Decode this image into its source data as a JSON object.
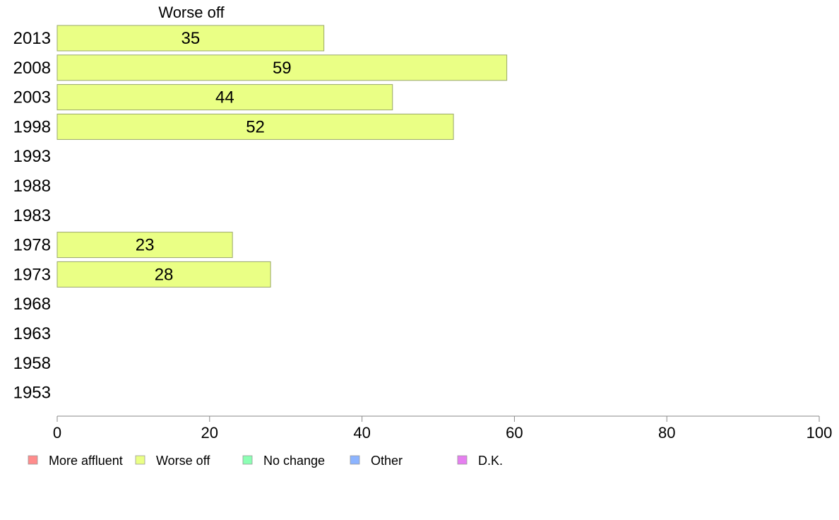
{
  "chart_data": {
    "type": "bar",
    "orientation": "horizontal",
    "series_title": "Worse off",
    "categories": [
      "2013",
      "2008",
      "2003",
      "1998",
      "1993",
      "1988",
      "1983",
      "1978",
      "1973",
      "1968",
      "1963",
      "1958",
      "1953"
    ],
    "series": [
      {
        "name": "Worse off",
        "values": [
          35,
          59,
          44,
          52,
          null,
          null,
          null,
          23,
          28,
          null,
          null,
          null,
          null
        ],
        "color": "#eaff85",
        "stroke": "#9aa86a"
      }
    ],
    "xlim": [
      0,
      100
    ],
    "xticks": [
      0,
      20,
      40,
      60,
      80,
      100
    ],
    "grid": false,
    "legend": {
      "position": "bottom-left",
      "entries": [
        {
          "label": "More affluent",
          "color": "#ff8c8c"
        },
        {
          "label": "Worse off",
          "color": "#eaff85"
        },
        {
          "label": "No change",
          "color": "#8cffb4"
        },
        {
          "label": "Other",
          "color": "#8cb4ff"
        },
        {
          "label": "D.K.",
          "color": "#e67ff0"
        }
      ]
    }
  }
}
